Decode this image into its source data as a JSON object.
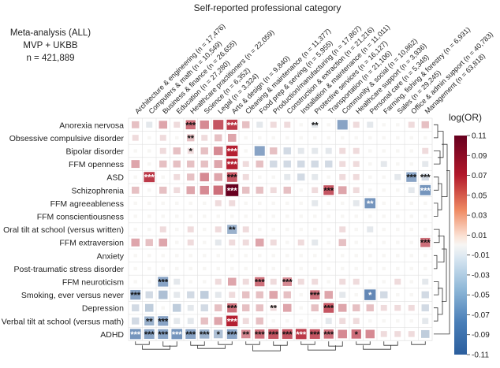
{
  "chart_data": {
    "type": "heatmap",
    "title": "Self-reported professional category",
    "info": [
      "Meta-analysis (ALL)",
      "MVP + UKBB",
      "n = 421,889"
    ],
    "columns": [
      "Architecture & engineering (n = 17,476)",
      "Computers & math (n = 10,549)",
      "Business & finance (n = 26,655)",
      "Education (n = 27,280)",
      "Healthcare practitioners (n = 22,059)",
      "Science (n = 6,352)",
      "Legal (n = 3,324)",
      "Arts & design (n = 9,840)",
      "Cleaning & maintenance (n = 11,377)",
      "Food prep & serving (n = 5,955)",
      "Production/manufacturing (n = 17,867)",
      "Construction & extraction (n = 21,216)",
      "Installation & maintenance (n = 11,011)",
      "Protective services (n = 16,127)",
      "Transportation (n = 21,106)",
      "Community & social (n = 10,862)",
      "Healthcare support (n = 3,936)",
      "Personal care (n = 5,348)",
      "Farming, fishing & forestry (n = 6,931)",
      "Sales (n = 29,245)",
      "Office & admin support (n = 40,783)",
      "Management (n = 63,818)"
    ],
    "rows": [
      "Anorexia nervosa",
      "Obsessive compulsive disorder",
      "Bipolar disorder",
      "FFM openness",
      "ASD",
      "Schizophrenia",
      "FFM agreeableness",
      "FFM conscientiousness",
      "Oral tilt at school (versus written)",
      "FFM extraversion",
      "Anxiety",
      "Post-traumatic stress disorder",
      "FFM neuroticism",
      "Smoking, ever versus never",
      "Depression",
      "Verbal tilt at school (versus math)",
      "ADHD"
    ],
    "values": [
      [
        0.02,
        -0.01,
        0.03,
        0.01,
        0.05,
        0.04,
        0.06,
        0.07,
        0.02,
        -0.01,
        0.01,
        0.01,
        0.0,
        -0.01,
        0.0,
        -0.06,
        0.01,
        -0.01,
        0.0,
        0.0,
        0.01,
        0.02
      ],
      [
        0.01,
        0.0,
        0.01,
        0.0,
        0.02,
        0.01,
        0.02,
        0.03,
        0.0,
        0.0,
        0.0,
        0.0,
        0.0,
        0.0,
        0.0,
        0.0,
        0.0,
        0.0,
        0.0,
        0.0,
        0.0,
        0.0
      ],
      [
        0.0,
        0.0,
        0.01,
        0.02,
        0.01,
        0.02,
        0.04,
        0.08,
        0.0,
        -0.06,
        0.02,
        -0.02,
        -0.01,
        -0.01,
        -0.01,
        0.01,
        0.01,
        0.0,
        0.0,
        0.0,
        0.0,
        0.01
      ],
      [
        0.03,
        0.0,
        0.02,
        0.02,
        0.02,
        0.02,
        0.03,
        0.08,
        0.01,
        0.02,
        -0.02,
        -0.02,
        -0.02,
        -0.02,
        -0.02,
        0.01,
        0.01,
        0.0,
        -0.01,
        0.0,
        0.0,
        -0.01
      ],
      [
        0.0,
        0.07,
        0.0,
        0.01,
        0.02,
        0.04,
        0.03,
        0.06,
        0.01,
        0.0,
        0.0,
        -0.01,
        -0.02,
        -0.01,
        0.0,
        0.01,
        0.01,
        0.0,
        0.0,
        -0.01,
        -0.06,
        -0.02
      ],
      [
        0.02,
        0.0,
        0.02,
        0.01,
        0.03,
        0.04,
        0.05,
        0.11,
        0.02,
        0.02,
        0.01,
        0.02,
        0.0,
        0.01,
        0.06,
        0.03,
        0.01,
        0.0,
        0.0,
        0.0,
        -0.01,
        -0.07
      ],
      [
        0.0,
        0.0,
        0.0,
        0.0,
        0.0,
        0.0,
        0.01,
        0.01,
        0.0,
        0.0,
        0.0,
        0.0,
        0.0,
        -0.01,
        0.0,
        0.0,
        -0.01,
        -0.07,
        0.0,
        0.0,
        0.0,
        0.0
      ],
      [
        0.0,
        0.0,
        0.0,
        0.0,
        0.0,
        0.0,
        0.0,
        0.0,
        0.0,
        0.0,
        0.0,
        0.0,
        0.0,
        0.0,
        0.0,
        0.0,
        0.0,
        0.0,
        0.0,
        0.0,
        0.0,
        0.0
      ],
      [
        0.0,
        0.0,
        0.01,
        0.0,
        0.01,
        0.0,
        0.01,
        -0.05,
        0.01,
        0.0,
        0.0,
        0.0,
        0.0,
        0.0,
        0.0,
        0.01,
        0.0,
        -0.01,
        0.0,
        0.0,
        0.0,
        0.0
      ],
      [
        0.03,
        0.02,
        0.03,
        0.0,
        0.01,
        0.0,
        -0.01,
        0.01,
        0.01,
        0.03,
        0.01,
        0.0,
        0.01,
        -0.01,
        0.0,
        0.02,
        0.0,
        0.0,
        0.0,
        0.0,
        0.0,
        0.05
      ],
      [
        0.0,
        0.0,
        0.0,
        0.0,
        0.0,
        0.0,
        0.0,
        0.0,
        0.0,
        0.0,
        0.0,
        0.0,
        0.0,
        0.0,
        0.0,
        0.0,
        0.0,
        0.0,
        0.0,
        0.0,
        0.0,
        0.0
      ],
      [
        0.0,
        0.0,
        0.0,
        0.0,
        0.0,
        0.0,
        0.0,
        0.0,
        0.0,
        0.0,
        0.0,
        0.0,
        0.0,
        0.0,
        0.0,
        0.0,
        0.0,
        0.0,
        0.0,
        0.0,
        0.0,
        0.0
      ],
      [
        0.0,
        0.0,
        -0.06,
        -0.01,
        0.0,
        0.0,
        0.01,
        0.03,
        0.01,
        0.05,
        0.01,
        0.04,
        0.01,
        0.01,
        0.0,
        0.01,
        0.01,
        0.0,
        0.0,
        0.01,
        0.0,
        -0.01
      ],
      [
        -0.06,
        -0.02,
        -0.04,
        -0.01,
        -0.02,
        -0.03,
        -0.01,
        0.01,
        0.02,
        0.02,
        0.03,
        0.02,
        0.0,
        0.05,
        0.03,
        -0.01,
        0.0,
        -0.08,
        -0.02,
        0.0,
        0.0,
        -0.02
      ],
      [
        -0.02,
        -0.03,
        0.0,
        -0.03,
        -0.01,
        -0.02,
        0.02,
        0.05,
        0.02,
        0.02,
        0.01,
        0.03,
        0.0,
        0.02,
        0.06,
        0.03,
        0.02,
        0.02,
        0.01,
        0.01,
        0.01,
        -0.02
      ],
      [
        -0.02,
        -0.05,
        -0.06,
        -0.01,
        -0.01,
        0.02,
        0.03,
        0.08,
        0.01,
        0.02,
        0.0,
        0.0,
        0.0,
        0.0,
        -0.01,
        0.01,
        0.01,
        0.0,
        0.0,
        0.0,
        0.0,
        -0.01
      ],
      [
        -0.07,
        -0.06,
        -0.06,
        -0.07,
        -0.06,
        -0.05,
        -0.04,
        -0.06,
        0.04,
        0.05,
        0.06,
        0.06,
        0.07,
        0.06,
        0.05,
        0.04,
        0.05,
        0.04,
        0.01,
        0.01,
        0.01,
        -0.03
      ]
    ],
    "significance": [
      [
        "",
        "",
        "",
        "",
        "***",
        "",
        "",
        "***",
        "",
        "",
        "",
        "",
        "",
        "**",
        "",
        "",
        "",
        "",
        "",
        "",
        "",
        ""
      ],
      [
        "",
        "",
        "",
        "",
        "**",
        "",
        "",
        "",
        "",
        "",
        "",
        "",
        "",
        "",
        "",
        "",
        "",
        "",
        "",
        "",
        "",
        ""
      ],
      [
        "",
        "",
        "",
        "",
        "*",
        "",
        "",
        "***",
        "",
        "",
        "",
        "",
        "",
        "",
        "",
        "",
        "",
        "",
        "",
        "",
        "",
        ""
      ],
      [
        "",
        "",
        "",
        "",
        "",
        "",
        "",
        "***",
        "",
        "",
        "",
        "",
        "",
        "",
        "",
        "",
        "",
        "",
        "",
        "",
        "",
        ""
      ],
      [
        "",
        "***",
        "",
        "",
        "",
        "",
        "",
        "***",
        "",
        "",
        "",
        "",
        "",
        "",
        "",
        "",
        "",
        "",
        "",
        "",
        "***",
        "***"
      ],
      [
        "",
        "",
        "",
        "",
        "",
        "",
        "",
        "***",
        "",
        "",
        "",
        "",
        "",
        "",
        "***",
        "",
        "",
        "",
        "",
        "",
        "",
        "***"
      ],
      [
        "",
        "",
        "",
        "",
        "",
        "",
        "",
        "",
        "",
        "",
        "",
        "",
        "",
        "",
        "",
        "",
        "",
        "**",
        "",
        "",
        "",
        ""
      ],
      [
        "",
        "",
        "",
        "",
        "",
        "",
        "",
        "",
        "",
        "",
        "",
        "",
        "",
        "",
        "",
        "",
        "",
        "",
        "",
        "",
        "",
        ""
      ],
      [
        "",
        "",
        "",
        "",
        "",
        "",
        "",
        "**",
        "",
        "",
        "",
        "",
        "",
        "",
        "",
        "",
        "",
        "",
        "",
        "",
        "",
        ""
      ],
      [
        "",
        "",
        "",
        "",
        "",
        "",
        "",
        "",
        "",
        "",
        "",
        "",
        "",
        "",
        "",
        "",
        "",
        "",
        "",
        "",
        "",
        "***"
      ],
      [
        "",
        "",
        "",
        "",
        "",
        "",
        "",
        "",
        "",
        "",
        "",
        "",
        "",
        "",
        "",
        "",
        "",
        "",
        "",
        "",
        "",
        ""
      ],
      [
        "",
        "",
        "",
        "",
        "",
        "",
        "",
        "",
        "",
        "",
        "",
        "",
        "",
        "",
        "",
        "",
        "",
        "",
        "",
        "",
        "",
        ""
      ],
      [
        "",
        "",
        "***",
        "",
        "",
        "",
        "",
        "",
        "",
        "***",
        "",
        "***",
        "",
        "",
        "",
        "",
        "",
        "",
        "",
        "",
        "",
        ""
      ],
      [
        "***",
        "",
        "",
        "",
        "",
        "",
        "",
        "",
        "",
        "",
        "",
        "",
        "",
        "***",
        "",
        "",
        "",
        "*",
        "",
        "",
        "",
        ""
      ],
      [
        "",
        "",
        "",
        "",
        "",
        "",
        "",
        "***",
        "",
        "",
        "**",
        "",
        "",
        "",
        "***",
        "",
        "",
        "",
        "",
        "",
        "",
        ""
      ],
      [
        "",
        "**",
        "***",
        "",
        "",
        "",
        "",
        "***",
        "",
        "",
        "",
        "",
        "",
        "",
        "",
        "",
        "",
        "",
        "",
        "",
        "",
        ""
      ],
      [
        "***",
        "***",
        "***",
        "***",
        "***",
        "***",
        "*",
        "***",
        "**",
        "***",
        "***",
        "***",
        "***",
        "***",
        "***",
        "",
        "*",
        "",
        "",
        "",
        "",
        ""
      ]
    ],
    "colorbar": {
      "label": "log(OR)",
      "ticks": [
        "0.11",
        "0.09",
        "0.07",
        "0.05",
        "0.03",
        "0.01",
        "-0.01",
        "-0.03",
        "-0.05",
        "-0.07",
        "-0.09",
        "-0.11"
      ],
      "range": [
        -0.11,
        0.11
      ],
      "colors": [
        "#2b5e9d",
        "#f7f6f4",
        "#b2182b",
        "#67001f"
      ]
    }
  }
}
